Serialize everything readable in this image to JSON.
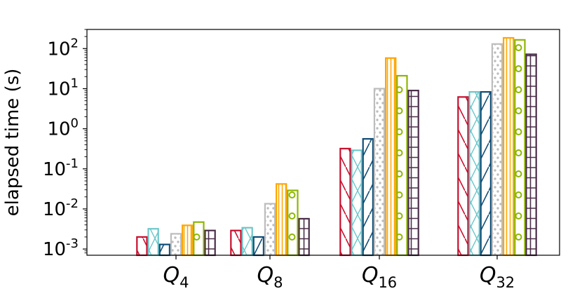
{
  "chart_data": {
    "type": "bar",
    "ylabel": "elapsed time (s)",
    "yscale": "log",
    "ylim": [
      0.0007,
      300
    ],
    "y_ticks": [
      {
        "base": "10",
        "exp": "-3",
        "value": 0.001
      },
      {
        "base": "10",
        "exp": "-2",
        "value": 0.01
      },
      {
        "base": "10",
        "exp": "-1",
        "value": 0.1
      },
      {
        "base": "10",
        "exp": "0",
        "value": 1
      },
      {
        "base": "10",
        "exp": "1",
        "value": 10
      },
      {
        "base": "10",
        "exp": "2",
        "value": 100
      }
    ],
    "categories": [
      {
        "main": "Q",
        "sub": "4"
      },
      {
        "main": "Q",
        "sub": "8"
      },
      {
        "main": "Q",
        "sub": "16"
      },
      {
        "main": "Q",
        "sub": "32"
      }
    ],
    "series": [
      {
        "color": "#c8102e",
        "hatch": "backslash",
        "values": [
          0.002,
          0.0029,
          0.32,
          6.2
        ]
      },
      {
        "color": "#6ec6ca",
        "hatch": "cross",
        "values": [
          0.0032,
          0.0034,
          0.29,
          8.3
        ]
      },
      {
        "color": "#0f4c75",
        "hatch": "slash",
        "values": [
          0.0013,
          0.002,
          0.56,
          8.3
        ]
      },
      {
        "color": "#bdbdbd",
        "hatch": "dots",
        "values": [
          0.0024,
          0.0135,
          10.0,
          130
        ]
      },
      {
        "color": "#ffa500",
        "hatch": "vertical",
        "values": [
          0.0039,
          0.042,
          58,
          185
        ]
      },
      {
        "color": "#8db600",
        "hatch": "circles",
        "values": [
          0.0047,
          0.029,
          21,
          165
        ]
      },
      {
        "color": "#4b2e4a",
        "hatch": "grid",
        "values": [
          0.0029,
          0.0057,
          9.0,
          72
        ]
      }
    ]
  }
}
